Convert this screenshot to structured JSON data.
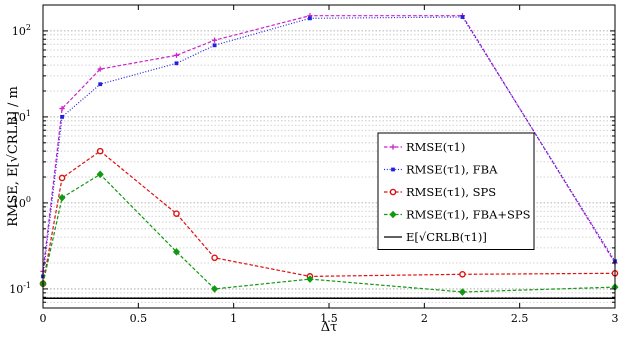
{
  "chart_data": {
    "type": "line",
    "xlabel": "Δτ",
    "ylabel": "RMSE, E[√CRLB] / m",
    "x_scale": "linear",
    "y_scale": "log",
    "xlim": [
      0,
      3
    ],
    "ylim": [
      0.06,
      200
    ],
    "x_ticks": [
      {
        "v": 0,
        "label": "0"
      },
      {
        "v": 0.5,
        "label": "0.5"
      },
      {
        "v": 1,
        "label": "1"
      },
      {
        "v": 1.5,
        "label": "1.5"
      },
      {
        "v": 2,
        "label": "2"
      },
      {
        "v": 2.5,
        "label": "2.5"
      },
      {
        "v": 3,
        "label": "3"
      }
    ],
    "y_ticks": [
      {
        "v": 0.1,
        "base": "10",
        "exp": "-1"
      },
      {
        "v": 1,
        "base": "10",
        "exp": "0"
      },
      {
        "v": 10,
        "base": "10",
        "exp": "1"
      },
      {
        "v": 100,
        "base": "10",
        "exp": "2"
      }
    ],
    "grid": "horizontal minor and major (dotted)",
    "legend_position": "center-right",
    "series": [
      {
        "name": "RMSE(τ1)",
        "color": "#cc22cc",
        "marker": "plus",
        "dash": "dashed",
        "x": [
          0,
          0.1,
          0.3,
          0.7,
          0.9,
          1.4,
          2.2,
          3.0
        ],
        "y": [
          0.16,
          12.5,
          36,
          52,
          78,
          150,
          150,
          0.2
        ]
      },
      {
        "name": "RMSE(τ1), FBA",
        "color": "#2222dd",
        "marker": "square",
        "dash": "dotted",
        "x": [
          0,
          0.1,
          0.3,
          0.7,
          0.9,
          1.4,
          2.2,
          3.0
        ],
        "y": [
          0.14,
          10,
          24,
          42,
          68,
          140,
          145,
          0.21
        ]
      },
      {
        "name": "RMSE(τ1), SPS",
        "color": "#dd1111",
        "marker": "circle",
        "dash": "dashed",
        "x": [
          0,
          0.1,
          0.3,
          0.7,
          0.9,
          1.4,
          2.2,
          3.0
        ],
        "y": [
          0.115,
          1.95,
          4.0,
          0.75,
          0.23,
          0.14,
          0.148,
          0.152
        ]
      },
      {
        "name": "RMSE(τ1), FBA+SPS",
        "color": "#119911",
        "marker": "diamond",
        "dash": "dashed",
        "x": [
          0,
          0.1,
          0.3,
          0.7,
          0.9,
          1.4,
          2.2,
          3.0
        ],
        "y": [
          0.115,
          1.15,
          2.15,
          0.27,
          0.1,
          0.13,
          0.092,
          0.105
        ]
      },
      {
        "name": "E[√CRLB(τ1)]",
        "color": "#000000",
        "marker": "none",
        "dash": "solid",
        "x": [
          0,
          3.0
        ],
        "y": [
          0.078,
          0.078
        ]
      }
    ]
  }
}
